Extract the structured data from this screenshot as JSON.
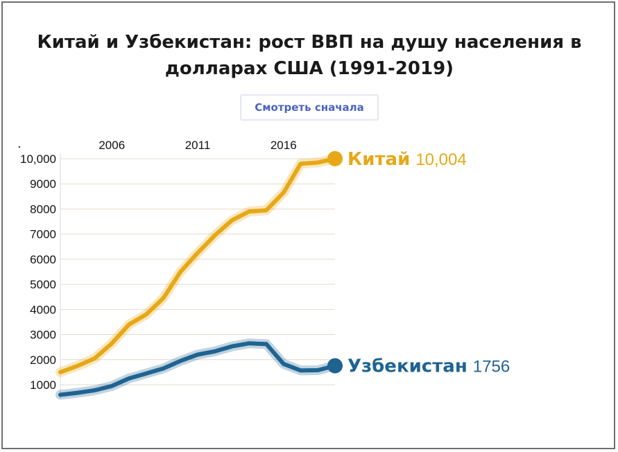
{
  "title": "Китай и Узбекистан: рост ВВП на душу населения в долларах США (1991-2019)",
  "replay_button": {
    "label": "Смотреть сначала"
  },
  "colors": {
    "china": "#e6a817",
    "uzbekistan": "#1f6391",
    "grid": "#e2dccb"
  },
  "chart_data": {
    "type": "line",
    "title": "Китай и Узбекистан: рост ВВП на душу населения в долларах США (1991-2019)",
    "x": [
      2003,
      2004,
      2005,
      2006,
      2007,
      2008,
      2009,
      2010,
      2011,
      2012,
      2013,
      2014,
      2015,
      2016,
      2017,
      2018,
      2019
    ],
    "xlim": [
      2003,
      2019
    ],
    "x_ticks": [
      "2006",
      "2011",
      "2016"
    ],
    "y_ticks": [
      "1000",
      "2000",
      "3000",
      "4000",
      "5000",
      "6000",
      "7000",
      "8000",
      "9000",
      "10,000"
    ],
    "ylim": [
      0,
      10000
    ],
    "grid": true,
    "series": [
      {
        "name": "Китай",
        "color": "#e6a817",
        "values": [
          1500,
          1750,
          2050,
          2650,
          3400,
          3800,
          4450,
          5500,
          6250,
          6950,
          7550,
          7900,
          7950,
          8650,
          9800,
          9850,
          10004
        ],
        "end_label_value": "10,004"
      },
      {
        "name": "Узбекистан",
        "color": "#1f6391",
        "values": [
          600,
          680,
          780,
          950,
          1250,
          1450,
          1650,
          1950,
          2200,
          2330,
          2530,
          2650,
          2620,
          1830,
          1570,
          1580,
          1756
        ],
        "end_label_value": "1756"
      }
    ]
  }
}
